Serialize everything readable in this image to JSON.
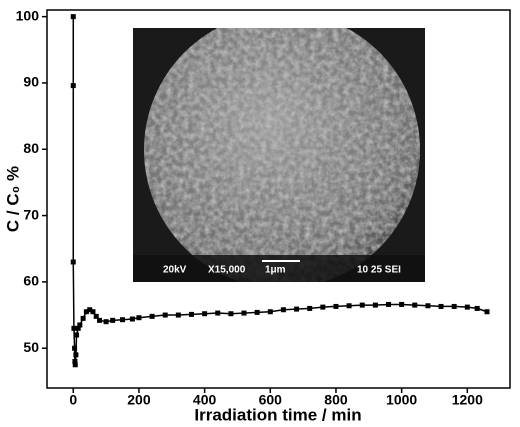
{
  "chart_data": {
    "type": "line",
    "xlabel": "Irradiation time / min",
    "ylabel": "C / C₀ %",
    "annotations": [
      "20kV",
      "X15,000",
      "1μm",
      "10 25 SEI"
    ],
    "x": [
      0,
      0,
      0,
      2,
      4,
      5,
      6,
      8,
      10,
      15,
      20,
      30,
      40,
      50,
      60,
      70,
      80,
      100,
      120,
      150,
      180,
      200,
      240,
      280,
      320,
      360,
      400,
      440,
      480,
      520,
      560,
      600,
      640,
      680,
      720,
      760,
      800,
      840,
      880,
      920,
      960,
      1000,
      1040,
      1080,
      1120,
      1160,
      1200,
      1230,
      1260
    ],
    "series": [
      {
        "color": "#000000",
        "values": [
          100,
          89.6,
          63,
          53,
          50,
          48,
          47.5,
          49,
          52,
          53,
          53.5,
          54.5,
          55.5,
          55.8,
          55.5,
          54.8,
          54.2,
          54,
          54.2,
          54.3,
          54.4,
          54.6,
          54.8,
          55,
          55,
          55.1,
          55.2,
          55.3,
          55.2,
          55.3,
          55.4,
          55.5,
          55.8,
          55.9,
          56,
          56.2,
          56.3,
          56.4,
          56.5,
          56.5,
          56.6,
          56.6,
          56.5,
          56.4,
          56.3,
          56.3,
          56.2,
          56.0,
          55.5
        ]
      }
    ],
    "xlim": [
      -80,
      1330
    ],
    "ylim": [
      44,
      101
    ],
    "xticks": [
      0,
      200,
      400,
      600,
      800,
      1000,
      1200
    ],
    "yticks": [
      50,
      60,
      70,
      80,
      90,
      100
    ],
    "marker": "square"
  }
}
